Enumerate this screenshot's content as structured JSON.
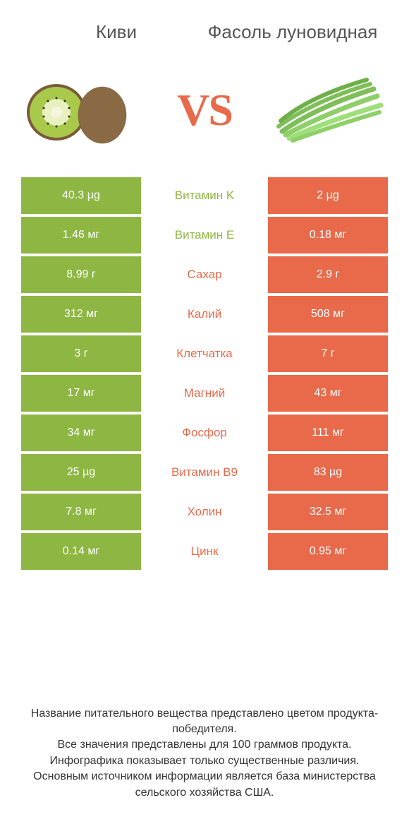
{
  "titles": {
    "left": "Киви",
    "right": "Фасоль луновидная"
  },
  "vs_label": "VS",
  "colors": {
    "left_bar": "#8db742",
    "right_bar": "#e86a4a",
    "left_text": "#8db742",
    "right_text": "#e86a4a",
    "mid_bg": "#ffffff",
    "footer_text": "#333333",
    "title_text": "#555555"
  },
  "illustrations": {
    "kiwi": {
      "outer": "#7a5a3a",
      "flesh": "#a8c94a",
      "inner": "#e8f0c0",
      "center": "#f5f5e0",
      "seed": "#2a2a1a"
    },
    "beans": {
      "pod": "#7fbf5a",
      "pod_dark": "#5a9940"
    }
  },
  "rows": [
    {
      "left": "40.3 µg",
      "mid": "Витамин K",
      "right": "2 µg",
      "winner": "left"
    },
    {
      "left": "1.46 мг",
      "mid": "Витамин E",
      "right": "0.18 мг",
      "winner": "left"
    },
    {
      "left": "8.99 г",
      "mid": "Сахар",
      "right": "2.9 г",
      "winner": "right"
    },
    {
      "left": "312 мг",
      "mid": "Калий",
      "right": "508 мг",
      "winner": "right"
    },
    {
      "left": "3 г",
      "mid": "Клетчатка",
      "right": "7 г",
      "winner": "right"
    },
    {
      "left": "17 мг",
      "mid": "Магний",
      "right": "43 мг",
      "winner": "right"
    },
    {
      "left": "34 мг",
      "mid": "Фосфор",
      "right": "111 мг",
      "winner": "right"
    },
    {
      "left": "25 µg",
      "mid": "Витамин B9",
      "right": "83 µg",
      "winner": "right"
    },
    {
      "left": "7.8 мг",
      "mid": "Холин",
      "right": "32.5 мг",
      "winner": "right"
    },
    {
      "left": "0.14 мг",
      "mid": "Цинк",
      "right": "0.95 мг",
      "winner": "right"
    }
  ],
  "footer": "Название питательного вещества представлено цветом продукта-победителя.\nВсе значения представлены для 100 граммов продукта.\nИнфографика показывает только существенные различия.\nОсновным источником информации является база министерства сельского хозяйства США."
}
